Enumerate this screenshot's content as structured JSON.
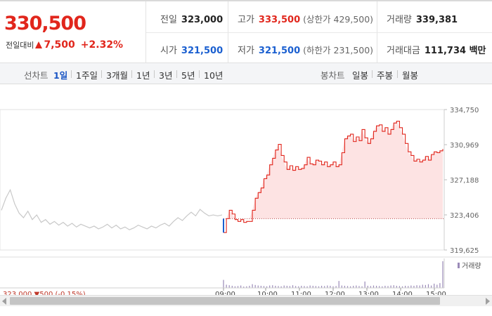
{
  "quote": {
    "price": "330,500",
    "change_label": "전일대비",
    "change_value": "7,500",
    "change_pct": "+2.32%",
    "prev_close_label": "전일",
    "prev_close": "323,000",
    "high_label": "고가",
    "high": "333,500",
    "upper_limit_text": "(상한가 429,500)",
    "volume_label": "거래량",
    "volume": "339,381",
    "open_label": "시가",
    "open": "321,500",
    "low_label": "저가",
    "low": "321,500",
    "lower_limit_text": "(하한가 231,500)",
    "amount_label": "거래대금",
    "amount": "111,734 백만"
  },
  "toolbar": {
    "line_label": "선차트",
    "line_periods": [
      "1일",
      "1주일",
      "3개월",
      "1년",
      "3년",
      "5년",
      "10년"
    ],
    "active_period": "1일",
    "candle_label": "봉차트",
    "candle_periods": [
      "일봉",
      "주봉",
      "월봉"
    ]
  },
  "colors": {
    "up": "#e1261c",
    "down": "#1a5fd0",
    "prev_day_line": "#c8c8c8",
    "area_fill": "#fde3e3",
    "volume_bar": "#9a8ab8"
  },
  "chart_data": {
    "type": "line",
    "title": "",
    "y_ticks": [
      "334,750",
      "330,969",
      "327,188",
      "323,406",
      "319,625"
    ],
    "ylim": [
      319625,
      334750
    ],
    "baseline": 323000,
    "volume_legend": "거래량",
    "x_tick_labels": [
      "09:00",
      "10:00",
      "11:00",
      "12:00",
      "13:00",
      "14:00",
      "15:00"
    ],
    "prev_day_note": "323,000 ▼500 (-0.15%)",
    "series": [
      {
        "name": "",
        "description_only": false,
        "values_by_time": [
          {
            "t": "prev",
            "points": [
              323900,
              325200,
              326100,
              324600,
              323600,
              323100,
              323800,
              322900,
              323400,
              322600,
              322900,
              322400,
              322700,
              322300,
              322600,
              322200,
              322500,
              322100,
              322400,
              322200,
              322000,
              322200,
              321900,
              322100,
              322400,
              322000,
              322300,
              321900,
              322100,
              321800,
              322000,
              322300,
              322100,
              321900,
              322200,
              322000,
              322300,
              322500,
              322200,
              322700,
              323100,
              322800,
              323300,
              323700,
              323300,
              324000,
              323600,
              323300,
              323400,
              323300,
              323400
            ]
          }
        ]
      },
      {
        "name": "",
        "today": [
          321500,
          323000,
          323900,
          323500,
          322900,
          322700,
          322900,
          322600,
          322700,
          322700,
          323900,
          325200,
          325800,
          326300,
          327300,
          327700,
          328800,
          329500,
          330400,
          331000,
          329800,
          329100,
          328300,
          328700,
          328200,
          328600,
          328300,
          328400,
          328800,
          329600,
          328900,
          328800,
          329300,
          329200,
          328800,
          329100,
          328600,
          328800,
          329100,
          328600,
          328800,
          330100,
          331600,
          331900,
          332100,
          331300,
          331800,
          331400,
          332600,
          331700,
          331100,
          331600,
          332400,
          333000,
          333100,
          332400,
          332800,
          332100,
          332600,
          333300,
          333500,
          332800,
          332100,
          331100,
          330200,
          329800,
          329200,
          329400,
          329100,
          329300,
          329700,
          329300,
          329900,
          330200,
          330100,
          330300,
          330500
        ]
      }
    ],
    "volume": {
      "prev": [
        1,
        1,
        1,
        1,
        1,
        1,
        1,
        1,
        1,
        1
      ],
      "today": [
        30,
        12,
        10,
        8,
        6,
        7,
        9,
        5,
        6,
        8,
        14,
        11,
        9,
        8,
        7,
        6,
        9,
        10,
        8,
        7,
        6,
        9,
        8,
        7,
        10,
        7,
        6,
        8,
        7,
        6,
        9,
        8,
        7,
        6,
        8,
        7,
        9,
        8,
        6,
        7,
        26,
        9,
        8,
        7,
        6,
        8,
        9,
        7,
        6,
        24,
        8,
        7,
        9,
        8,
        7,
        6,
        8,
        7,
        9,
        10,
        8,
        7,
        6,
        8,
        7,
        9,
        8,
        10,
        9,
        12,
        11,
        14,
        9,
        16,
        12,
        18,
        100
      ]
    }
  }
}
